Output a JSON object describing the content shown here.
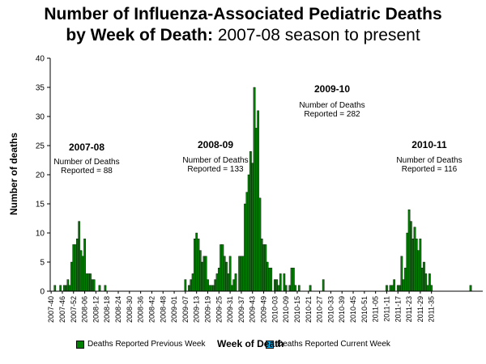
{
  "title": {
    "line1": "Number of Influenza-Associated Pediatric Deaths",
    "line2_bold": "by Week of Death:",
    "line2_rest": " 2007-08 season to present"
  },
  "colors": {
    "previous": "#008000",
    "current": "#00B0F0"
  },
  "chart_data": {
    "type": "bar",
    "ylabel": "Number of deaths",
    "xlabel": "Week of Death",
    "ylim": [
      0,
      40
    ],
    "yticks": [
      0,
      5,
      10,
      15,
      20,
      25,
      30,
      35,
      40
    ],
    "x_tick_labels": [
      "2007-40",
      "2007-46",
      "2007-52",
      "2008-06",
      "2008-12",
      "2008-18",
      "2008-24",
      "2008-30",
      "2008-36",
      "2008-42",
      "2008-48",
      "2009-01",
      "2009-07",
      "2009-13",
      "2009-19",
      "2009-25",
      "2009-31",
      "2009-37",
      "2009-43",
      "2009-49",
      "2010-03",
      "2010-09",
      "2010-15",
      "2010-21",
      "2010-27",
      "2010-33",
      "2010-39",
      "2010-45",
      "2010-51",
      "2011-05",
      "2011-11",
      "2011-17",
      "2011-23",
      "2011-29",
      "2011-35"
    ],
    "grid": false,
    "legend_position": "bottom",
    "series": [
      {
        "name": "Deaths Reported Previous Week",
        "values": [
          0,
          0,
          1,
          0,
          0,
          1,
          0,
          1,
          1,
          2,
          1,
          5,
          8,
          8,
          9,
          12,
          7,
          6,
          9,
          3,
          3,
          3,
          2,
          2,
          0,
          0,
          1,
          0,
          0,
          1,
          0,
          0,
          0,
          0,
          0,
          0,
          0,
          0,
          0,
          0,
          0,
          0,
          0,
          0,
          0,
          0,
          0,
          0,
          0,
          0,
          0,
          0,
          0,
          0,
          0,
          0,
          0,
          0,
          0,
          0,
          0,
          0,
          0,
          0,
          0,
          0,
          0,
          0,
          0,
          0,
          0,
          0,
          2,
          0,
          1,
          2,
          3,
          9,
          10,
          9,
          7,
          5,
          6,
          6,
          2,
          1,
          1,
          1,
          2,
          3,
          4,
          8,
          8,
          6,
          5,
          3,
          6,
          1,
          2,
          3,
          0,
          6,
          6,
          6,
          15,
          17,
          20,
          24,
          22,
          35,
          28,
          31,
          16,
          9,
          8,
          8,
          5,
          4,
          4,
          0,
          2,
          2,
          1,
          3,
          0,
          3,
          1,
          0,
          1,
          4,
          4,
          1,
          0,
          1,
          0,
          0,
          0,
          0,
          0,
          1,
          0,
          0,
          0,
          0,
          0,
          0,
          2,
          0,
          0,
          0,
          0,
          0,
          0,
          0,
          0,
          0,
          0,
          0,
          0,
          0,
          0,
          0,
          0,
          0,
          0,
          0,
          0,
          0,
          0,
          0,
          0,
          0,
          0,
          0,
          0,
          0,
          0,
          0,
          0,
          0,
          1,
          0,
          1,
          1,
          2,
          0,
          1,
          1,
          6,
          2,
          4,
          10,
          14,
          12,
          9,
          11,
          9,
          7,
          9,
          4,
          5,
          3,
          1,
          3,
          1,
          0,
          0,
          0,
          0,
          0,
          0,
          0,
          0,
          0,
          0,
          0,
          0,
          0,
          0,
          0,
          0,
          0,
          0,
          0,
          0,
          1,
          0,
          0,
          0,
          0,
          0,
          0
        ]
      },
      {
        "name": "Deaths Reported Current Week",
        "values": []
      }
    ],
    "annotations": [
      {
        "season": "2007-08",
        "text_line1": "Number of Deaths",
        "text_line2": "Reported = 88"
      },
      {
        "season": "2008-09",
        "text_line1": "Number of Deaths",
        "text_line2": "Reported = 133"
      },
      {
        "season": "2009-10",
        "text_line1": "Number of Deaths",
        "text_line2": "Reported = 282"
      },
      {
        "season": "2010-11",
        "text_line1": "Number of Deaths",
        "text_line2": "Reported = 116"
      }
    ]
  }
}
